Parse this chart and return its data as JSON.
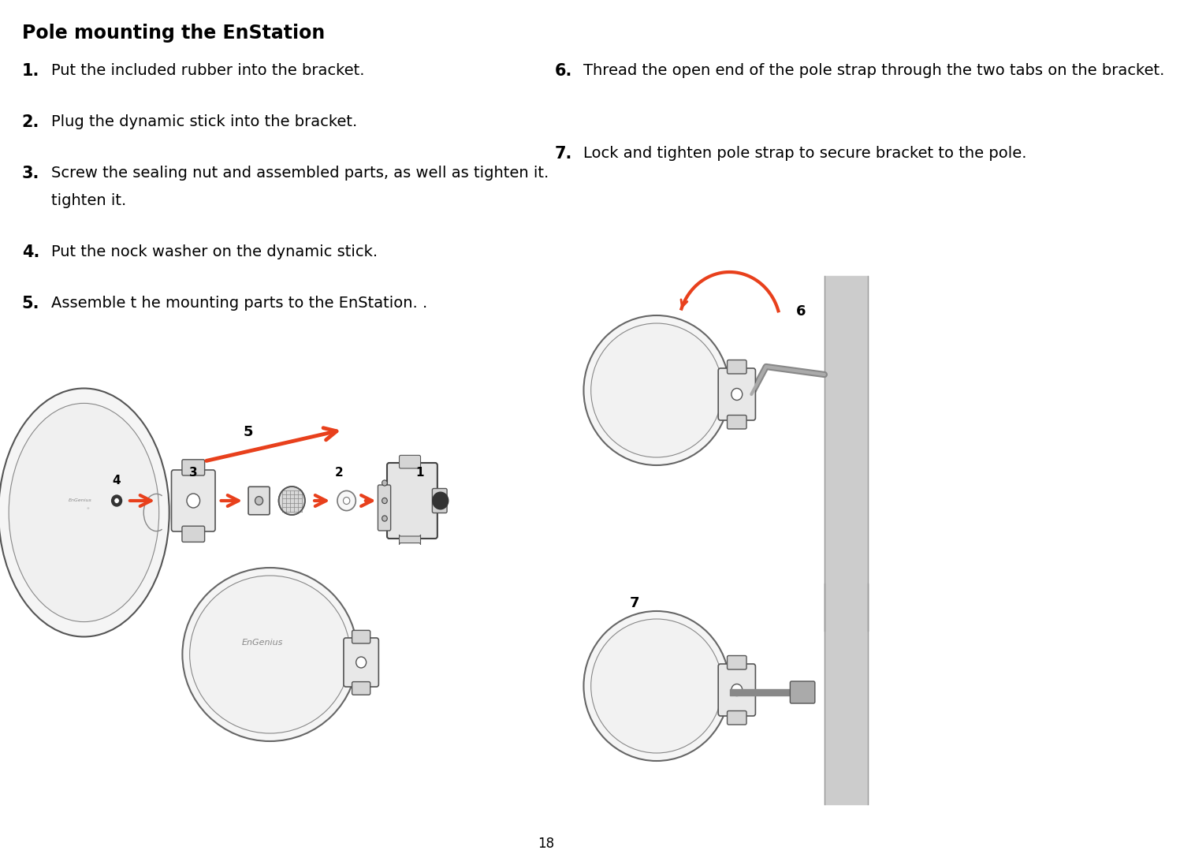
{
  "title": "Pole mounting the EnStation",
  "steps": [
    {
      "num": "1.",
      "text": "Put the included rubber into the bracket."
    },
    {
      "num": "2.",
      "text": "Plug the dynamic stick into the bracket."
    },
    {
      "num": "3.",
      "text": "Screw the sealing nut and assembled parts, as well as tighten it."
    },
    {
      "num": "4.",
      "text": "Put the nock washer on the dynamic stick."
    },
    {
      "num": "5.",
      "text": "Assemble t he mounting parts to the EnStation. ."
    },
    {
      "num": "6.",
      "text": "Thread the open end of the pole strap through the two tabs on the bracket."
    },
    {
      "num": "7.",
      "text": "Lock and tighten pole strap to secure bracket to the pole."
    }
  ],
  "page_number": "18",
  "arrow_color": "#e8401c",
  "bg_color": "#ffffff",
  "text_color": "#000000",
  "title_fontsize": 17,
  "step_num_fontsize": 15,
  "step_text_fontsize": 14
}
